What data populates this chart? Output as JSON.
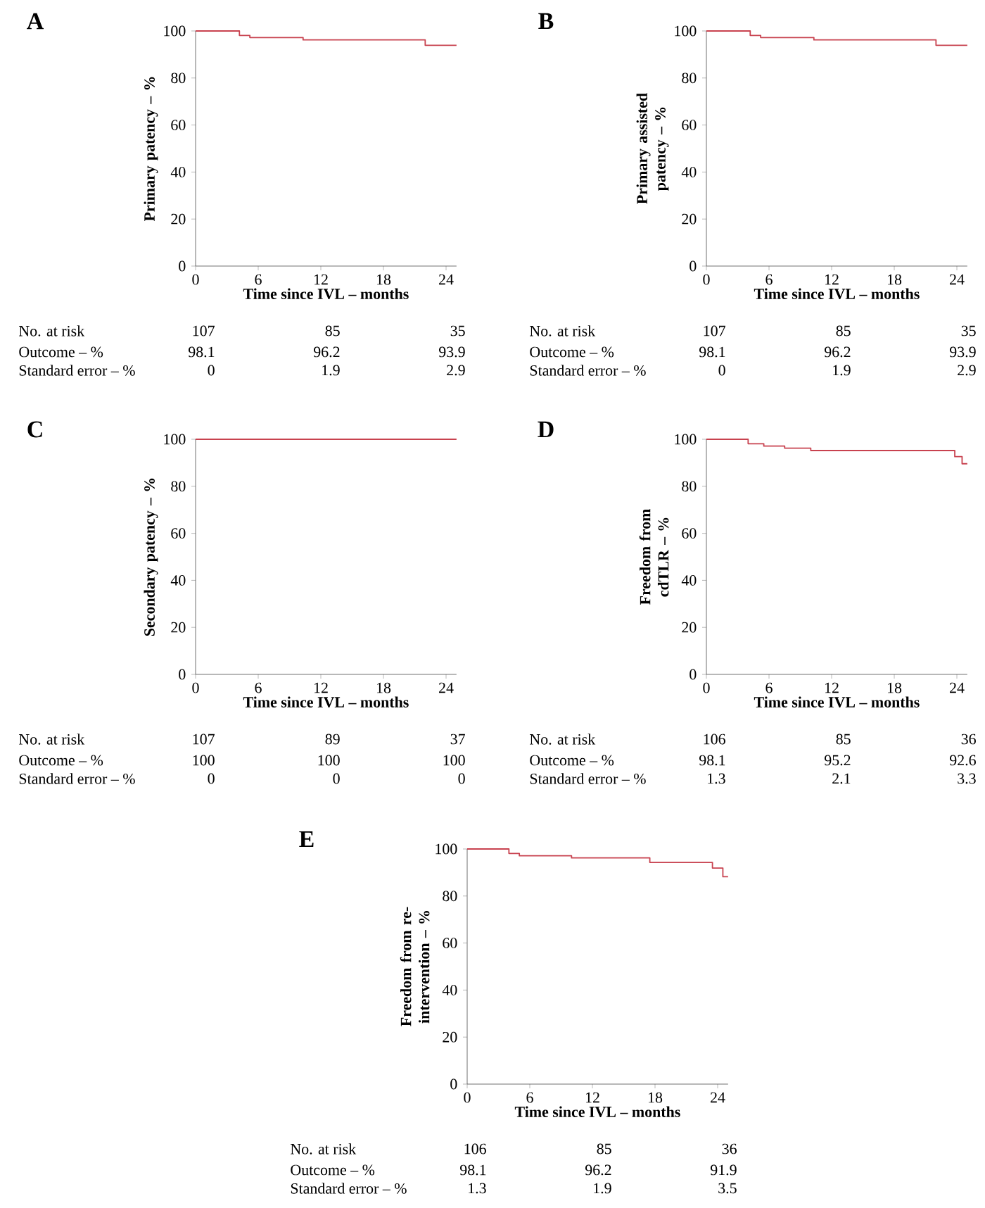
{
  "chart_data": [
    {
      "type": "step",
      "title": "A",
      "xlabel": "Time since IVL – months",
      "ylabel": "Primary patency – %",
      "xlim": [
        0,
        25
      ],
      "ylim": [
        0,
        100
      ],
      "xticks": [
        0,
        6,
        12,
        18,
        24
      ],
      "yticks": [
        0,
        20,
        40,
        60,
        80,
        100
      ],
      "series": [
        {
          "color": "#c8424f",
          "x": [
            0,
            4.2,
            5.2,
            10.3,
            22,
            25
          ],
          "values": [
            100,
            98.1,
            97.2,
            96.2,
            93.9,
            93.9
          ]
        }
      ],
      "annotations": [
        "No. at risk",
        "107",
        "85",
        "35",
        "Outcome – %",
        "98.1",
        "96.2",
        "93.9",
        "Standard error – %",
        "0",
        "1.9",
        "2.9"
      ]
    },
    {
      "type": "step",
      "title": "B",
      "xlabel": "Time since IVL – months",
      "ylabel": "Primary assisted patency – %",
      "xlim": [
        0,
        25
      ],
      "ylim": [
        0,
        100
      ],
      "xticks": [
        0,
        6,
        12,
        18,
        24
      ],
      "yticks": [
        0,
        20,
        40,
        60,
        80,
        100
      ],
      "series": [
        {
          "color": "#c8424f",
          "x": [
            0,
            4.2,
            5.2,
            10.3,
            22,
            25
          ],
          "values": [
            100,
            98.1,
            97.2,
            96.2,
            93.9,
            93.9
          ]
        }
      ],
      "annotations": [
        "No. at risk",
        "107",
        "85",
        "35",
        "Outcome – %",
        "98.1",
        "96.2",
        "93.9",
        "Standard error – %",
        "0",
        "1.9",
        "2.9"
      ]
    },
    {
      "type": "step",
      "title": "C",
      "xlabel": "Time since IVL – months",
      "ylabel": "Secondary patency – %",
      "xlim": [
        0,
        25
      ],
      "ylim": [
        0,
        100
      ],
      "xticks": [
        0,
        6,
        12,
        18,
        24
      ],
      "yticks": [
        0,
        20,
        40,
        60,
        80,
        100
      ],
      "series": [
        {
          "color": "#c8424f",
          "x": [
            0,
            25
          ],
          "values": [
            100,
            100
          ]
        }
      ],
      "annotations": [
        "No. at risk",
        "107",
        "89",
        "37",
        "Outcome – %",
        "100",
        "100",
        "100",
        "Standard error – %",
        "0",
        "0",
        "0"
      ]
    },
    {
      "type": "step",
      "title": "D",
      "xlabel": "Time since IVL – months",
      "ylabel": "Freedom from cdTLR – %",
      "xlim": [
        0,
        25
      ],
      "ylim": [
        0,
        100
      ],
      "xticks": [
        0,
        6,
        12,
        18,
        24
      ],
      "yticks": [
        0,
        20,
        40,
        60,
        80,
        100
      ],
      "series": [
        {
          "color": "#c8424f",
          "x": [
            0,
            4,
            5.5,
            7.5,
            10,
            23.8,
            24.5,
            25
          ],
          "values": [
            100,
            98.1,
            97.1,
            96.2,
            95.2,
            92.6,
            89.6,
            89.6
          ]
        }
      ],
      "annotations": [
        "No. at risk",
        "106",
        "85",
        "36",
        "Outcome – %",
        "98.1",
        "95.2",
        "92.6",
        "Standard error – %",
        "1.3",
        "2.1",
        "3.3"
      ]
    },
    {
      "type": "step",
      "title": "E",
      "xlabel": "Time since IVL – months",
      "ylabel": "Freedom from re-intervention – %",
      "xlim": [
        0,
        25
      ],
      "ylim": [
        0,
        100
      ],
      "xticks": [
        0,
        6,
        12,
        18,
        24
      ],
      "yticks": [
        0,
        20,
        40,
        60,
        80,
        100
      ],
      "series": [
        {
          "color": "#c8424f",
          "x": [
            0,
            4,
            5,
            10,
            17.5,
            23.5,
            24.5,
            25
          ],
          "values": [
            100,
            98.1,
            97.1,
            96.2,
            94.3,
            91.9,
            88.2,
            88.2
          ]
        }
      ],
      "annotations": [
        "No. at risk",
        "106",
        "85",
        "36",
        "Outcome – %",
        "98.1",
        "96.2",
        "91.9",
        "Standard error – %",
        "1.3",
        "1.9",
        "3.5"
      ]
    }
  ]
}
